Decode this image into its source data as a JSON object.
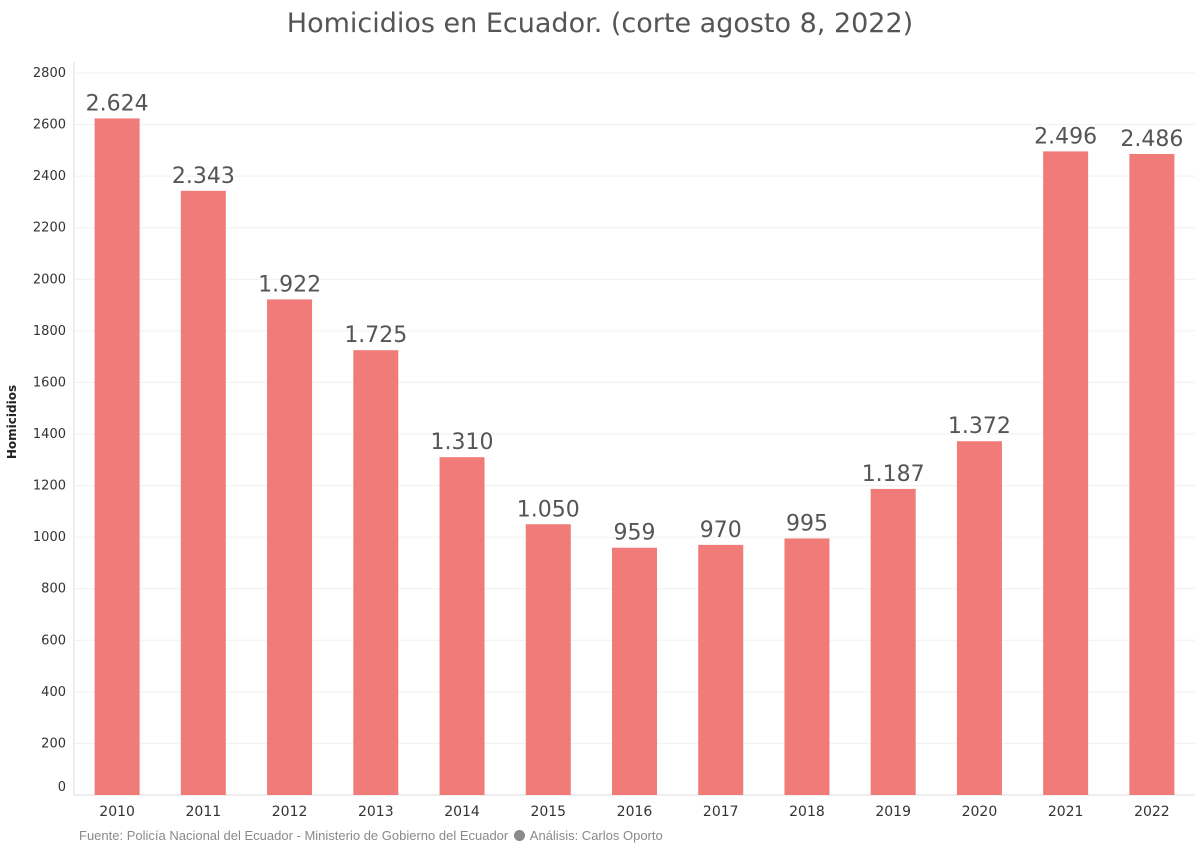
{
  "chart_data": {
    "type": "bar",
    "title": "Homicidios en Ecuador. (corte agosto 8, 2022)",
    "xlabel": "",
    "ylabel": "Homicidios",
    "categories": [
      "2010",
      "2011",
      "2012",
      "2013",
      "2014",
      "2015",
      "2016",
      "2017",
      "2018",
      "2019",
      "2020",
      "2021",
      "2022"
    ],
    "values": [
      2624,
      2343,
      1922,
      1725,
      1310,
      1050,
      959,
      970,
      995,
      1187,
      1372,
      2496,
      2486
    ],
    "value_labels": [
      "2.624",
      "2.343",
      "1.922",
      "1.725",
      "1.310",
      "1.050",
      "959",
      "970",
      "995",
      "1.187",
      "1.372",
      "2.496",
      "2.486"
    ],
    "ylim": [
      0,
      2800
    ],
    "yticks": [
      0,
      200,
      400,
      600,
      800,
      1000,
      1200,
      1400,
      1600,
      1800,
      2000,
      2200,
      2400,
      2600,
      2800
    ],
    "bar_color": "#F07B78",
    "grid": true,
    "legend": "none"
  },
  "footer": {
    "source": "Fuente: Policía Nacional del Ecuador - Ministerio de Gobierno del Ecuador",
    "analysis": "Análisis: Carlos Oporto"
  }
}
